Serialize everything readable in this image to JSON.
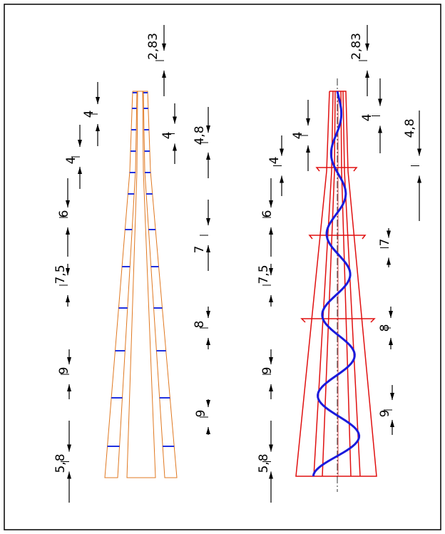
{
  "left_drawing": {
    "dimensions": [
      "4",
      "4",
      "6",
      "7,5",
      "9",
      "5,8",
      "2,83",
      "4",
      "4,8",
      "7",
      "8",
      "9"
    ]
  },
  "right_drawing": {
    "dimensions": [
      "4",
      "4",
      "6",
      "7,5",
      "9",
      "5,8",
      "2,83",
      "4",
      "4,8",
      "7",
      "8",
      "9"
    ]
  }
}
